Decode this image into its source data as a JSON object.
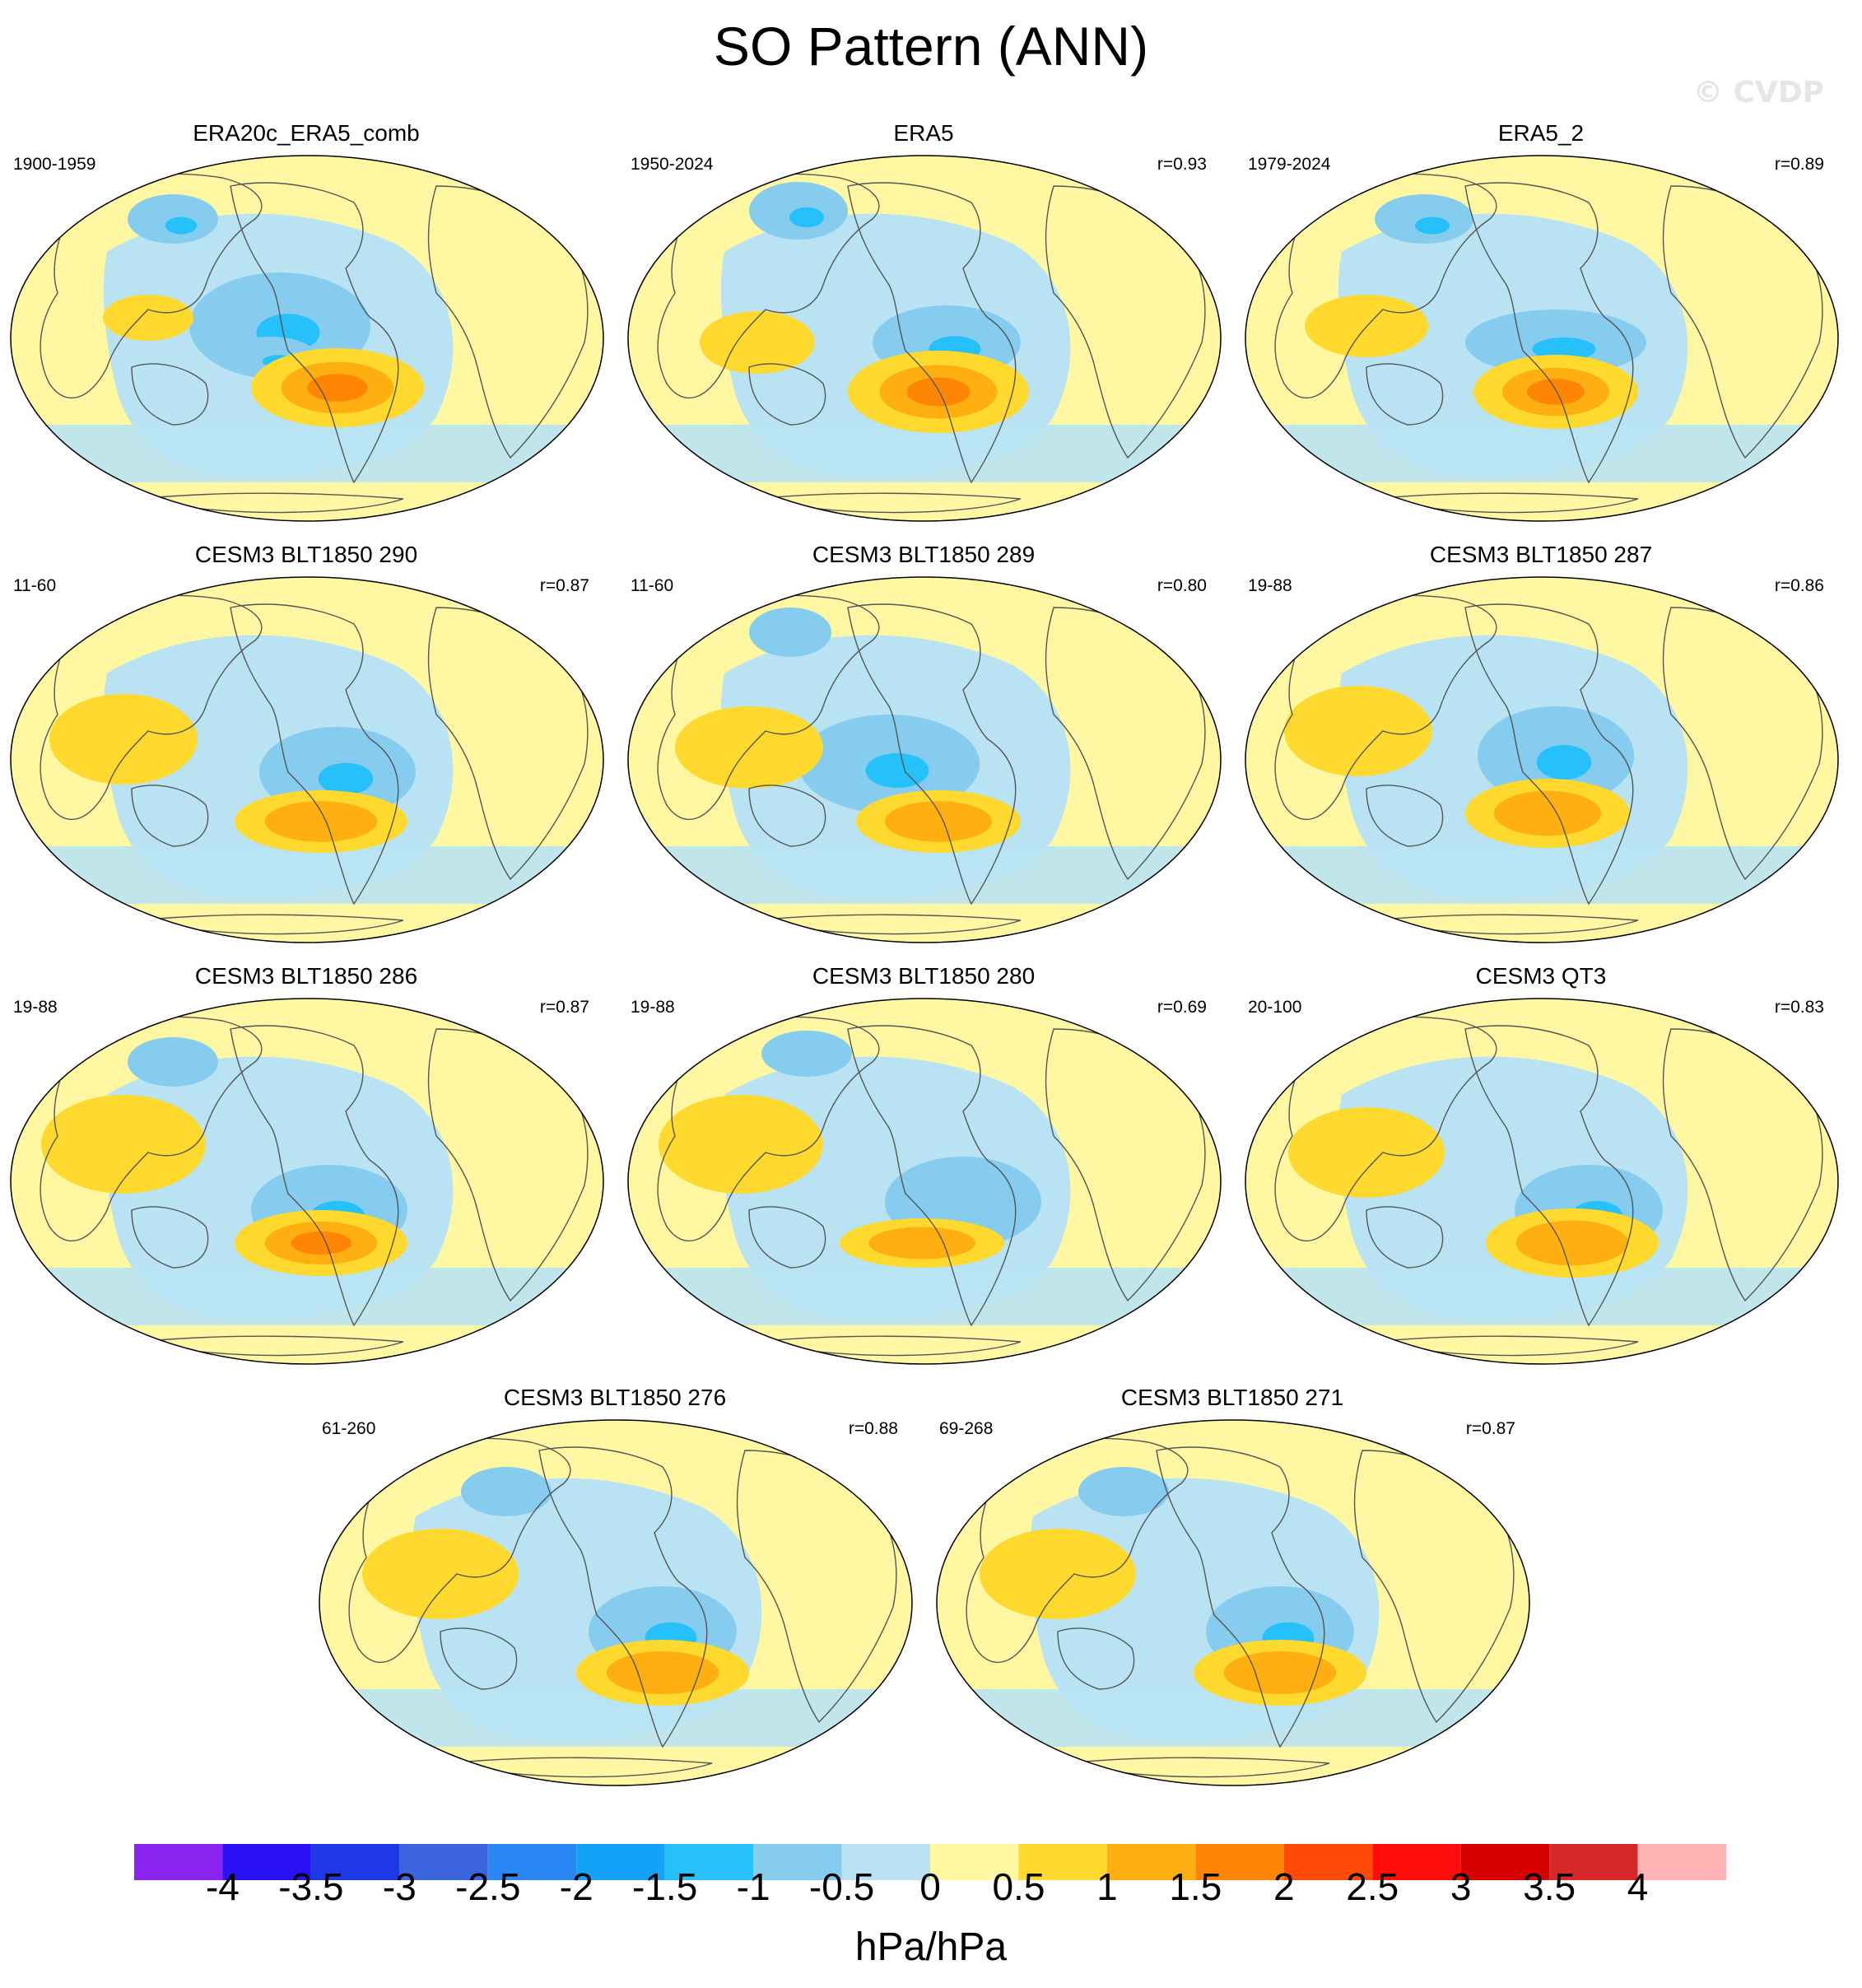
{
  "title": "SO Pattern (ANN)",
  "watermark": "© CVDP",
  "units": "hPa/hPa",
  "colorbar": {
    "labels": [
      "-4",
      "-3.5",
      "-3",
      "-2.5",
      "-2",
      "-1.5",
      "-1",
      "-0.5",
      "0",
      "0.5",
      "1",
      "1.5",
      "2",
      "2.5",
      "3",
      "3.5",
      "4"
    ],
    "colors": [
      "#8a22f0",
      "#2a10f5",
      "#1e38e6",
      "#3c64dd",
      "#2a86f2",
      "#14a2f8",
      "#26c0fa",
      "#86ccee",
      "#b9e3f3",
      "#fff7a2",
      "#ffd92e",
      "#ffaf10",
      "#ff8505",
      "#ff4a0a",
      "#ff0d0d",
      "#d70000",
      "#d62828",
      "#ffb3b5"
    ]
  },
  "panels": [
    {
      "title": "ERA20c_ERA5_comb",
      "period": "1900-1959",
      "r": ""
    },
    {
      "title": "ERA5",
      "period": "1950-2024",
      "r": "r=0.93"
    },
    {
      "title": "ERA5_2",
      "period": "1979-2024",
      "r": "r=0.89"
    },
    {
      "title": "CESM3 BLT1850 290",
      "period": "11-60",
      "r": "r=0.87"
    },
    {
      "title": "CESM3 BLT1850 289",
      "period": "11-60",
      "r": "r=0.80"
    },
    {
      "title": "CESM3 BLT1850 287",
      "period": "19-88",
      "r": "r=0.86"
    },
    {
      "title": "CESM3 BLT1850 286",
      "period": "19-88",
      "r": "r=0.87"
    },
    {
      "title": "CESM3 BLT1850 280",
      "period": "19-88",
      "r": "r=0.69"
    },
    {
      "title": "CESM3 QT3",
      "period": "20-100",
      "r": "r=0.83"
    },
    {
      "title": "CESM3 BLT1850 276",
      "period": "61-260",
      "r": "r=0.88"
    },
    {
      "title": "CESM3 BLT1850 271",
      "period": "69-268",
      "r": "r=0.87"
    }
  ]
}
